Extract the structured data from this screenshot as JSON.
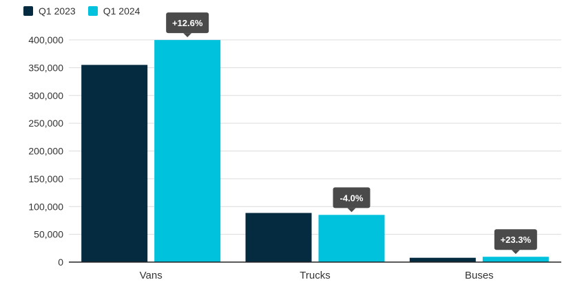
{
  "chart_data": {
    "type": "bar",
    "title": "",
    "xlabel": "",
    "ylabel": "",
    "categories": [
      "Vans",
      "Trucks",
      "Buses"
    ],
    "series": [
      {
        "name": "Q1 2023",
        "color": "#042b40",
        "values": [
          355000,
          88500,
          7800
        ]
      },
      {
        "name": "Q1 2024",
        "color": "#00c2dd",
        "values": [
          399800,
          85000,
          9620
        ]
      }
    ],
    "ylim": [
      0,
      400000
    ],
    "yticks": [
      0,
      50000,
      100000,
      150000,
      200000,
      250000,
      300000,
      350000,
      400000
    ],
    "ytick_labels": [
      "0",
      "50,000",
      "100,000",
      "150,000",
      "200,000",
      "250,000",
      "300,000",
      "350,000",
      "400,000"
    ],
    "grid": true,
    "legend_position": "top-left",
    "annotations": [
      "+12.6%",
      "-4.0%",
      "+23.3%"
    ],
    "annotation_color": "#4a4a4a"
  }
}
